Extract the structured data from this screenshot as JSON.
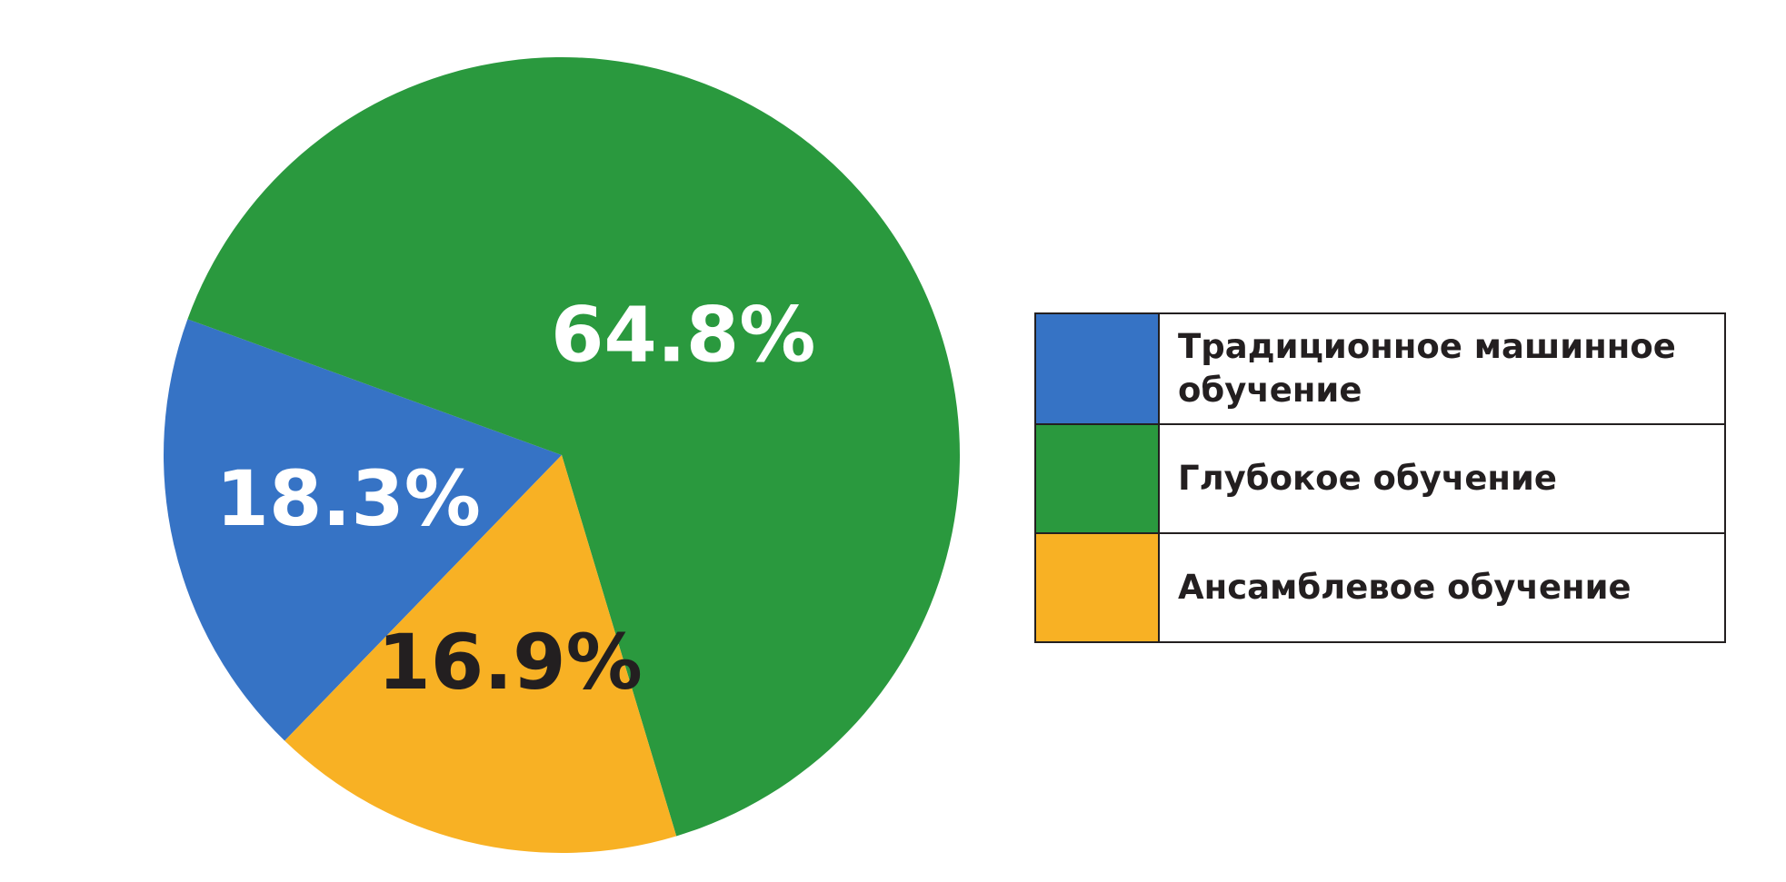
{
  "chart_data": {
    "type": "pie",
    "categories": [
      "Традиционное машинное обучение",
      "Глубокое обучение",
      "Ансамблевое обучение"
    ],
    "values": [
      18.3,
      64.8,
      16.9
    ],
    "value_labels": [
      "18.3%",
      "64.8%",
      "16.9%"
    ],
    "colors": [
      "#3673c5",
      "#2a993e",
      "#f8b124"
    ],
    "label_colors": [
      "#ffffff",
      "#ffffff",
      "#231f20"
    ],
    "legend": "right"
  }
}
